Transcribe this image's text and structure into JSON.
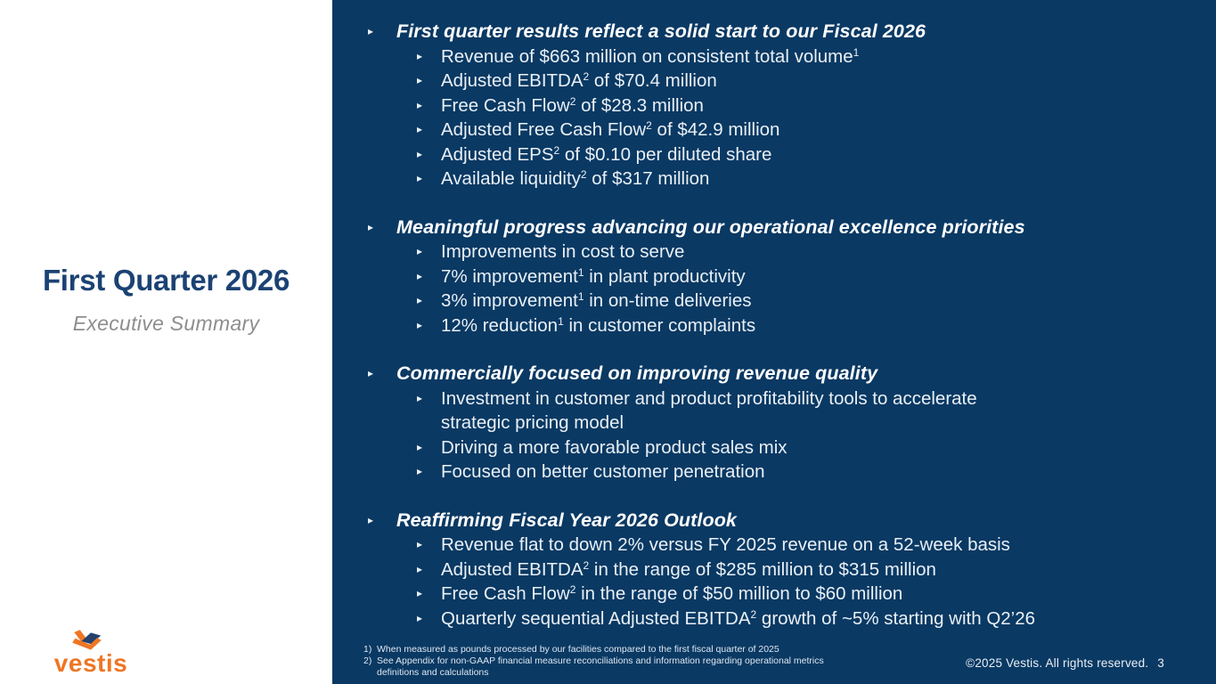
{
  "slide": {
    "title": "First Quarter 2026",
    "subtitle": "Executive Summary"
  },
  "logo": {
    "word": "vestis"
  },
  "icons": {
    "bullet": "▸",
    "logo_mark": "vestis-chevron"
  },
  "colors": {
    "panel_navy": "#0A3963",
    "title_navy": "#1B4273",
    "subtitle_gray": "#8E8E8E",
    "logo_orange": "#EE7624",
    "logo_navy": "#24426B",
    "header_text": "#FFFFFF",
    "body_text": "#E9F0F6",
    "footnote_text": "#DDE7F1"
  },
  "sections": [
    {
      "header": "First quarter results reflect a solid start to our Fiscal 2026",
      "items": [
        {
          "segments": [
            {
              "t": "Revenue of $663 million on consistent total volume"
            },
            {
              "t": "1",
              "sup": true
            }
          ]
        },
        {
          "segments": [
            {
              "t": "Adjusted EBITDA"
            },
            {
              "t": "2",
              "sup": true
            },
            {
              "t": " of $70.4 million"
            }
          ]
        },
        {
          "segments": [
            {
              "t": "Free Cash Flow"
            },
            {
              "t": "2",
              "sup": true
            },
            {
              "t": " of $28.3 million"
            }
          ]
        },
        {
          "segments": [
            {
              "t": "Adjusted Free Cash Flow"
            },
            {
              "t": "2",
              "sup": true
            },
            {
              "t": " of $42.9 million"
            }
          ]
        },
        {
          "segments": [
            {
              "t": "Adjusted EPS"
            },
            {
              "t": "2",
              "sup": true
            },
            {
              "t": " of $0.10 per diluted share"
            }
          ]
        },
        {
          "segments": [
            {
              "t": "Available liquidity"
            },
            {
              "t": "2",
              "sup": true
            },
            {
              "t": " of $317 million"
            }
          ]
        }
      ]
    },
    {
      "header": "Meaningful progress advancing our operational excellence priorities",
      "items": [
        {
          "segments": [
            {
              "t": "Improvements in cost to serve"
            }
          ]
        },
        {
          "segments": [
            {
              "t": "7% improvement"
            },
            {
              "t": "1",
              "sup": true
            },
            {
              "t": " in plant productivity"
            }
          ]
        },
        {
          "segments": [
            {
              "t": "3% improvement"
            },
            {
              "t": "1",
              "sup": true
            },
            {
              "t": " in on-time deliveries"
            }
          ]
        },
        {
          "segments": [
            {
              "t": "12% reduction"
            },
            {
              "t": "1",
              "sup": true
            },
            {
              "t": " in customer complaints"
            }
          ]
        }
      ]
    },
    {
      "header": "Commercially focused on improving revenue quality",
      "items": [
        {
          "segments": [
            {
              "t": "Investment in customer and product profitability tools to accelerate"
            },
            {
              "br": true
            },
            {
              "t": "strategic pricing model"
            }
          ]
        },
        {
          "segments": [
            {
              "t": "Driving a more favorable product sales mix"
            }
          ]
        },
        {
          "segments": [
            {
              "t": "Focused on better customer penetration"
            }
          ]
        }
      ]
    },
    {
      "header": "Reaffirming Fiscal Year 2026 Outlook",
      "items": [
        {
          "segments": [
            {
              "t": "Revenue flat to down 2% versus FY 2025 revenue on a 52-week basis"
            }
          ]
        },
        {
          "segments": [
            {
              "t": "Adjusted EBITDA"
            },
            {
              "t": "2",
              "sup": true
            },
            {
              "t": " in the range of $285 million to $315 million"
            }
          ]
        },
        {
          "segments": [
            {
              "t": "Free Cash Flow"
            },
            {
              "t": "2",
              "sup": true
            },
            {
              "t": " in the range of $50 million to $60 million"
            }
          ]
        },
        {
          "segments": [
            {
              "t": "Quarterly sequential Adjusted EBITDA"
            },
            {
              "t": "2",
              "sup": true
            },
            {
              "t": " growth of ~5% starting with Q2’26"
            }
          ]
        }
      ]
    }
  ],
  "footnotes": [
    {
      "label": "1)",
      "text": "When measured as pounds processed by our facilities compared to the first fiscal quarter of 2025"
    },
    {
      "label": "2)",
      "text": "See Appendix for non-GAAP financial measure reconciliations and information regarding operational metrics definitions and calculations"
    }
  ],
  "footer": {
    "copyright": "©2025 Vestis. All rights reserved.",
    "page_number": "3"
  }
}
